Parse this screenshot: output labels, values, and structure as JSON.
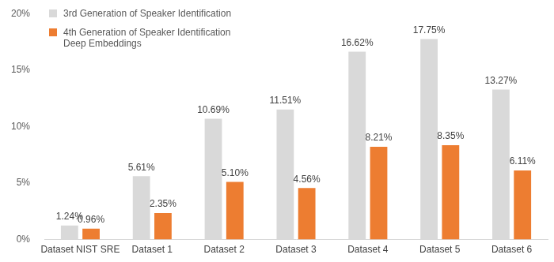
{
  "chart_data": {
    "type": "bar",
    "categories": [
      "Dataset NIST SRE",
      "Dataset 1",
      "Dataset 2",
      "Dataset 3",
      "Dataset 4",
      "Dataset 5",
      "Dataset 6"
    ],
    "series": [
      {
        "name": "3rd Generation of Speaker Identification",
        "color": "#d9d9d9",
        "values": [
          1.24,
          5.61,
          10.69,
          11.51,
          16.62,
          17.75,
          13.27
        ],
        "value_labels": [
          "1.24%",
          "5.61%",
          "10.69%",
          "11.51%",
          "16.62%",
          "17.75%",
          "13.27%"
        ]
      },
      {
        "name": "4th Generation of Speaker Identification Deep Embeddings",
        "color": "#ed7d31",
        "values": [
          0.96,
          2.35,
          5.1,
          4.56,
          8.21,
          8.35,
          6.11
        ],
        "value_labels": [
          "0.96%",
          "2.35%",
          "5.10%",
          "4.56%",
          "8.21%",
          "8.35%",
          "6.11%"
        ]
      }
    ],
    "ylim": [
      0,
      20
    ],
    "yticks": [
      {
        "value": 0,
        "label": "0%"
      },
      {
        "value": 5,
        "label": "5%"
      },
      {
        "value": 10,
        "label": "10%"
      },
      {
        "value": 15,
        "label": "15%"
      },
      {
        "value": 20,
        "label": "20%"
      }
    ],
    "grid": false,
    "legend": "upper left",
    "data_labels": true
  }
}
